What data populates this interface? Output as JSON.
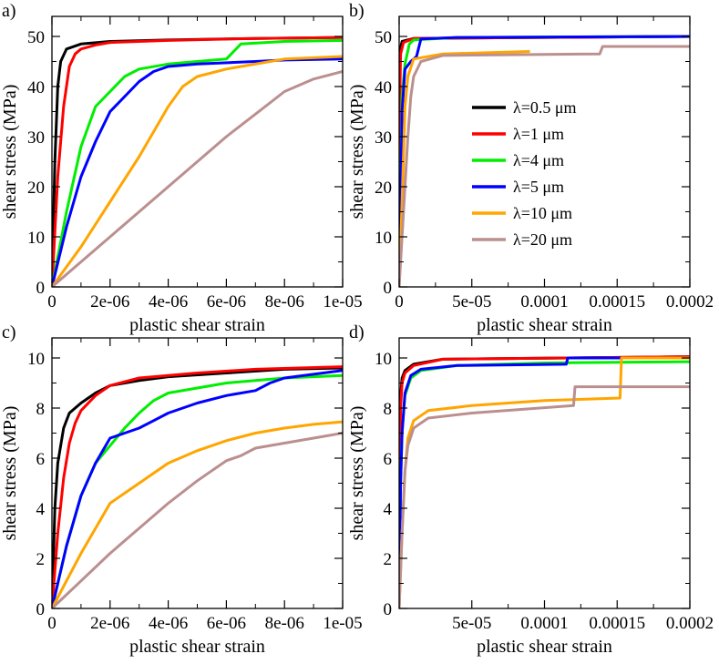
{
  "legend": {
    "entries": [
      {
        "label": "λ=0.5 μm",
        "color": "#000000"
      },
      {
        "label": "λ=1 μm",
        "color": "#ff0000"
      },
      {
        "label": "λ=4 μm",
        "color": "#00ee00"
      },
      {
        "label": "λ=5 μm",
        "color": "#0000ff"
      },
      {
        "label": "λ=10 μm",
        "color": "#ffa500"
      },
      {
        "label": "λ=20 μm",
        "color": "#bc8f8f"
      }
    ]
  },
  "chart_data": [
    {
      "type": "line",
      "panel_label": "a)",
      "xlabel": "plastic shear strain",
      "ylabel": "shear stress (MPa)",
      "xlim": [
        0,
        1e-05
      ],
      "ylim": [
        0,
        54
      ],
      "xticks": [
        {
          "v": 0,
          "t": "0"
        },
        {
          "v": 2e-06,
          "t": "2e-06"
        },
        {
          "v": 4e-06,
          "t": "4e-06"
        },
        {
          "v": 6e-06,
          "t": "6e-06"
        },
        {
          "v": 8e-06,
          "t": "8e-06"
        },
        {
          "v": 1e-05,
          "t": "1e-05"
        }
      ],
      "yticks": [
        {
          "v": 0,
          "t": "0"
        },
        {
          "v": 10,
          "t": "10"
        },
        {
          "v": 20,
          "t": "20"
        },
        {
          "v": 30,
          "t": "30"
        },
        {
          "v": 40,
          "t": "40"
        },
        {
          "v": 50,
          "t": "50"
        }
      ],
      "series": [
        {
          "name": "λ=0.5 μm",
          "color": "#000000",
          "x": [
            0,
            1e-07,
            2e-07,
            3e-07,
            5e-07,
            1e-06,
            2e-06,
            4e-06,
            7e-06,
            1e-05
          ],
          "y": [
            0,
            25,
            40,
            45,
            47.5,
            48.5,
            49,
            49.3,
            49.6,
            49.8
          ]
        },
        {
          "name": "λ=1 μm",
          "color": "#ff0000",
          "x": [
            0,
            2e-07,
            4e-07,
            6e-07,
            8e-07,
            1e-06,
            1.5e-06,
            2e-06,
            4e-06,
            7e-06,
            1e-05
          ],
          "y": [
            0,
            22,
            36,
            44,
            46.5,
            47.5,
            48.3,
            48.8,
            49.2,
            49.6,
            49.8
          ]
        },
        {
          "name": "λ=4 μm",
          "color": "#00ee00",
          "x": [
            0,
            5e-07,
            1e-06,
            1.5e-06,
            2e-06,
            2.5e-06,
            3e-06,
            4e-06,
            5e-06,
            6e-06,
            6.5e-06,
            8e-06,
            1e-05
          ],
          "y": [
            0,
            15,
            28,
            36,
            39,
            42,
            43.5,
            44.5,
            45,
            45.5,
            48.5,
            49,
            49.2
          ]
        },
        {
          "name": "λ=5 μm",
          "color": "#0000ff",
          "x": [
            0,
            5e-07,
            1e-06,
            1.5e-06,
            2e-06,
            2.5e-06,
            3e-06,
            3.5e-06,
            4e-06,
            5e-06,
            7e-06,
            8e-06,
            1e-05
          ],
          "y": [
            0,
            12,
            22,
            29,
            35,
            38,
            41,
            43,
            44,
            44.5,
            45,
            45.3,
            45.5
          ]
        },
        {
          "name": "λ=10 μm",
          "color": "#ffa500",
          "x": [
            0,
            1e-06,
            2e-06,
            3e-06,
            4e-06,
            4.5e-06,
            5e-06,
            6e-06,
            8e-06,
            1e-05
          ],
          "y": [
            0,
            8,
            17,
            26,
            36,
            40,
            42,
            43.5,
            45.5,
            46
          ]
        },
        {
          "name": "λ=20 μm",
          "color": "#bc8f8f",
          "x": [
            0,
            1e-06,
            2e-06,
            3e-06,
            4e-06,
            5e-06,
            6e-06,
            7e-06,
            8e-06,
            9e-06,
            1e-05
          ],
          "y": [
            0,
            5,
            10,
            15,
            20,
            25,
            30,
            34.5,
            39,
            41.5,
            43
          ]
        }
      ]
    },
    {
      "type": "line",
      "panel_label": "b)",
      "xlabel": "plastic shear strain",
      "ylabel": "shear stress (MPa)",
      "xlim": [
        0,
        0.0002
      ],
      "ylim": [
        0,
        54
      ],
      "xticks": [
        {
          "v": 0,
          "t": "0"
        },
        {
          "v": 5e-05,
          "t": "5e-05"
        },
        {
          "v": 0.0001,
          "t": "0.0001"
        },
        {
          "v": 0.00015,
          "t": "0.00015"
        },
        {
          "v": 0.0002,
          "t": "0.0002"
        }
      ],
      "yticks": [
        {
          "v": 0,
          "t": "0"
        },
        {
          "v": 10,
          "t": "10"
        },
        {
          "v": 20,
          "t": "20"
        },
        {
          "v": 30,
          "t": "30"
        },
        {
          "v": 40,
          "t": "40"
        },
        {
          "v": 50,
          "t": "50"
        }
      ],
      "series": [
        {
          "name": "λ=0.5 μm",
          "color": "#000000",
          "x": [
            0,
            3e-07,
            8e-07,
            2e-06,
            1e-05,
            0.0002
          ],
          "y": [
            0,
            40,
            47.5,
            49,
            49.6,
            50
          ]
        },
        {
          "name": "λ=1 μm",
          "color": "#ff0000",
          "x": [
            0,
            5e-07,
            1e-06,
            3e-06,
            1e-05,
            0.0002
          ],
          "y": [
            0,
            38,
            46.5,
            48.8,
            49.6,
            50
          ]
        },
        {
          "name": "λ=4 μm",
          "color": "#00ee00",
          "x": [
            0,
            2e-06,
            4e-06,
            7e-06,
            1e-05,
            4e-05,
            0.0002
          ],
          "y": [
            0,
            38,
            44.5,
            48.5,
            49.3,
            49.8,
            50
          ]
        },
        {
          "name": "λ=5 μm",
          "color": "#0000ff",
          "x": [
            0,
            2e-06,
            4e-06,
            8e-06,
            1.2e-05,
            1.5e-05,
            4e-05,
            0.0002
          ],
          "y": [
            0,
            35,
            43.5,
            45,
            46,
            49.5,
            49.8,
            50
          ]
        },
        {
          "name": "λ=10 μm",
          "color": "#ffa500",
          "x": [
            0,
            2e-06,
            4e-06,
            6e-06,
            1e-05,
            3e-05,
            9e-05
          ],
          "y": [
            0,
            17,
            36,
            42,
            45.5,
            46.5,
            47
          ]
        },
        {
          "name": "λ=20 μm",
          "color": "#bc8f8f",
          "x": [
            0,
            2e-06,
            4e-06,
            6e-06,
            8e-06,
            1e-05,
            1.5e-05,
            3e-05,
            0.000138,
            0.00014,
            0.0002
          ],
          "y": [
            0,
            10,
            20,
            30,
            38,
            42,
            45,
            46.2,
            46.5,
            48,
            48
          ]
        }
      ]
    },
    {
      "type": "line",
      "panel_label": "c)",
      "xlabel": "plastic shear strain",
      "ylabel": "shear stress (MPa)",
      "xlim": [
        0,
        1e-05
      ],
      "ylim": [
        0,
        10.8
      ],
      "xticks": [
        {
          "v": 0,
          "t": "0"
        },
        {
          "v": 2e-06,
          "t": "2e-06"
        },
        {
          "v": 4e-06,
          "t": "4e-06"
        },
        {
          "v": 6e-06,
          "t": "6e-06"
        },
        {
          "v": 8e-06,
          "t": "8e-06"
        },
        {
          "v": 1e-05,
          "t": "1e-05"
        }
      ],
      "yticks": [
        {
          "v": 0,
          "t": "0"
        },
        {
          "v": 2,
          "t": "2"
        },
        {
          "v": 4,
          "t": "4"
        },
        {
          "v": 6,
          "t": "6"
        },
        {
          "v": 8,
          "t": "8"
        },
        {
          "v": 10,
          "t": "10"
        }
      ],
      "series": [
        {
          "name": "λ=0.5 μm",
          "color": "#000000",
          "x": [
            0,
            1e-07,
            2e-07,
            4e-07,
            6e-07,
            1e-06,
            1.5e-06,
            2e-06,
            3e-06,
            4e-06,
            6e-06,
            8e-06,
            1e-05
          ],
          "y": [
            0,
            4,
            5.8,
            7.2,
            7.8,
            8.2,
            8.6,
            8.9,
            9.1,
            9.25,
            9.4,
            9.55,
            9.6
          ]
        },
        {
          "name": "λ=1 μm",
          "color": "#ff0000",
          "x": [
            0,
            2e-07,
            4e-07,
            6e-07,
            8e-07,
            1e-06,
            1.5e-06,
            2e-06,
            3e-06,
            5e-06,
            7e-06,
            1e-05
          ],
          "y": [
            0,
            3,
            5.2,
            6.6,
            7.4,
            7.9,
            8.5,
            8.9,
            9.2,
            9.4,
            9.55,
            9.65
          ]
        },
        {
          "name": "λ=4 μm",
          "color": "#00ee00",
          "x": [
            0,
            5e-07,
            1e-06,
            1.5e-06,
            2e-06,
            2.5e-06,
            3e-06,
            3.5e-06,
            4e-06,
            5e-06,
            6e-06,
            7e-06,
            8e-06,
            1e-05
          ],
          "y": [
            0,
            2.5,
            4.5,
            5.8,
            6.5,
            7.2,
            7.8,
            8.3,
            8.6,
            8.8,
            9,
            9.1,
            9.2,
            9.3
          ]
        },
        {
          "name": "λ=5 μm",
          "color": "#0000ff",
          "x": [
            0,
            5e-07,
            1e-06,
            1.5e-06,
            2e-06,
            2.5e-06,
            3e-06,
            3.5e-06,
            4e-06,
            5e-06,
            6e-06,
            7e-06,
            7.5e-06,
            8e-06,
            1e-05
          ],
          "y": [
            0,
            2.5,
            4.5,
            5.8,
            6.8,
            7,
            7.2,
            7.5,
            7.8,
            8.2,
            8.5,
            8.7,
            9,
            9.2,
            9.5
          ]
        },
        {
          "name": "λ=10 μm",
          "color": "#ffa500",
          "x": [
            0,
            1e-06,
            2e-06,
            3e-06,
            3.5e-06,
            4e-06,
            5e-06,
            6e-06,
            7e-06,
            8e-06,
            9e-06,
            1e-05
          ],
          "y": [
            0,
            2.2,
            4.2,
            5,
            5.4,
            5.8,
            6.3,
            6.7,
            7,
            7.2,
            7.35,
            7.45
          ]
        },
        {
          "name": "λ=20 μm",
          "color": "#bc8f8f",
          "x": [
            0,
            1e-06,
            2e-06,
            3e-06,
            4e-06,
            5e-06,
            6e-06,
            6.5e-06,
            7e-06,
            8e-06,
            9e-06,
            1e-05
          ],
          "y": [
            0,
            1.1,
            2.2,
            3.2,
            4.2,
            5.1,
            5.9,
            6.1,
            6.4,
            6.6,
            6.8,
            7
          ]
        }
      ]
    },
    {
      "type": "line",
      "panel_label": "d)",
      "xlabel": "plastic shear strain",
      "ylabel": "shear stress (MPa)",
      "xlim": [
        0,
        0.0002
      ],
      "ylim": [
        0,
        10.8
      ],
      "xticks": [
        {
          "v": 5e-05,
          "t": "5e-05"
        },
        {
          "v": 0.0001,
          "t": "0.0001"
        },
        {
          "v": 0.00015,
          "t": "0.00015"
        },
        {
          "v": 0.0002,
          "t": "0.0002"
        }
      ],
      "yticks": [
        {
          "v": 0,
          "t": "0"
        },
        {
          "v": 2,
          "t": "2"
        },
        {
          "v": 4,
          "t": "4"
        },
        {
          "v": 6,
          "t": "6"
        },
        {
          "v": 8,
          "t": "8"
        },
        {
          "v": 10,
          "t": "10"
        }
      ],
      "series": [
        {
          "name": "λ=0.5 μm",
          "color": "#000000",
          "x": [
            0,
            5e-07,
            1e-06,
            2e-06,
            4e-06,
            1e-05,
            3e-05,
            0.0002
          ],
          "y": [
            0,
            7.5,
            8.5,
            9.2,
            9.5,
            9.75,
            9.95,
            10.05
          ]
        },
        {
          "name": "λ=1 μm",
          "color": "#ff0000",
          "x": [
            0,
            5e-07,
            1e-06,
            2e-06,
            4e-06,
            1e-05,
            3e-05,
            0.0002
          ],
          "y": [
            0,
            6.5,
            8,
            9,
            9.4,
            9.7,
            9.95,
            10.05
          ]
        },
        {
          "name": "λ=4 μm",
          "color": "#00ee00",
          "x": [
            0,
            1e-06,
            2e-06,
            4e-06,
            8e-06,
            1.5e-05,
            4e-05,
            0.0001,
            0.0002
          ],
          "y": [
            0,
            5,
            7,
            8.5,
            9.2,
            9.5,
            9.7,
            9.8,
            9.85
          ]
        },
        {
          "name": "λ=5 μm",
          "color": "#0000ff",
          "x": [
            0,
            1e-06,
            2e-06,
            4e-06,
            8e-06,
            1.5e-05,
            4e-05,
            0.000115,
            0.000116,
            0.0002
          ],
          "y": [
            0,
            5,
            7,
            8.6,
            9.3,
            9.55,
            9.7,
            9.75,
            10,
            10
          ]
        },
        {
          "name": "λ=10 μm",
          "color": "#ffa500",
          "x": [
            0,
            2e-06,
            4e-06,
            6e-06,
            1e-05,
            2e-05,
            5e-05,
            0.0001,
            0.000152,
            0.000153,
            0.0002
          ],
          "y": [
            0,
            3,
            5.5,
            6.8,
            7.5,
            7.9,
            8.1,
            8.3,
            8.4,
            10,
            10
          ]
        },
        {
          "name": "λ=20 μm",
          "color": "#bc8f8f",
          "x": [
            0,
            2e-06,
            4e-06,
            6e-06,
            1e-05,
            2e-05,
            5e-05,
            0.00012,
            0.000121,
            0.0002
          ],
          "y": [
            0,
            3,
            5.5,
            6.5,
            7.2,
            7.6,
            7.8,
            8.1,
            8.85,
            8.85
          ]
        }
      ]
    }
  ]
}
